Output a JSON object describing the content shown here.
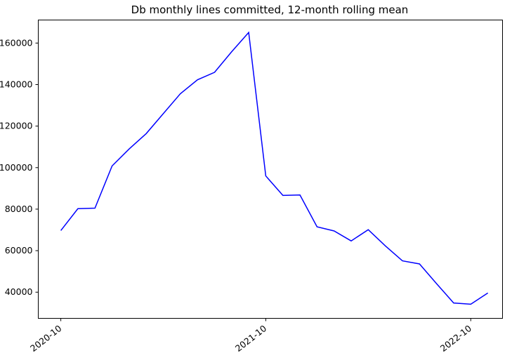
{
  "chart_data": {
    "type": "line",
    "title": "Db monthly lines committed, 12-month rolling mean",
    "xlabel": "",
    "ylabel": "",
    "grid": false,
    "legend": false,
    "series_name": "12-month rolling mean of monthly lines committed",
    "line_color": "#0000ff",
    "x": [
      "2020-10",
      "2020-11",
      "2020-12",
      "2021-01",
      "2021-02",
      "2021-03",
      "2021-04",
      "2021-05",
      "2021-06",
      "2021-07",
      "2021-08",
      "2021-09",
      "2021-10",
      "2021-11",
      "2021-12",
      "2022-01",
      "2022-02",
      "2022-03",
      "2022-04",
      "2022-05",
      "2022-06",
      "2022-07",
      "2022-08",
      "2022-09",
      "2022-10",
      "2022-11"
    ],
    "values": [
      69700,
      80200,
      80500,
      100800,
      109000,
      116400,
      126000,
      135600,
      142300,
      145900,
      155800,
      165100,
      96000,
      86600,
      86800,
      71500,
      69500,
      64700,
      70100,
      62300,
      55100,
      53600,
      44100,
      34800,
      34200,
      39600
    ],
    "xtick_labels": [
      "2020-10",
      "2021-10",
      "2022-10"
    ],
    "xtick_month_indices": [
      0,
      12,
      24
    ],
    "ytick_values": [
      40000,
      60000,
      80000,
      100000,
      120000,
      140000,
      160000
    ],
    "ylim": [
      27400,
      171100
    ],
    "xlim_month_index": [
      -1.32,
      25.86
    ]
  }
}
